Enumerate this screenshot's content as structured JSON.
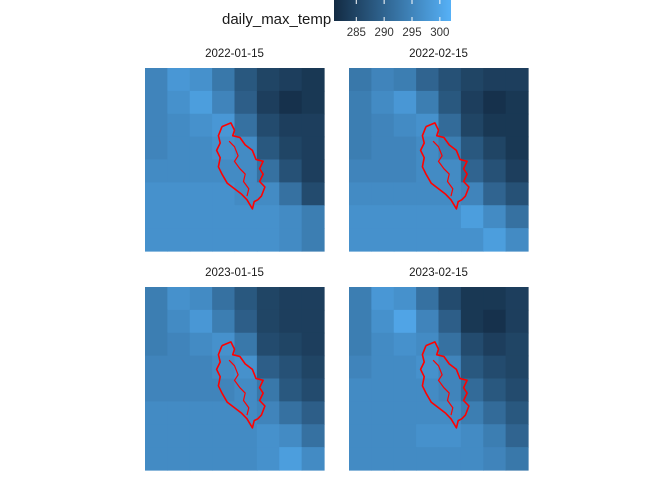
{
  "chart_data": {
    "type": "heatmap",
    "legend": {
      "title": "daily_max_temp",
      "ticks": [
        "285",
        "290",
        "295",
        "300"
      ],
      "tick_values": [
        285,
        290,
        295,
        300
      ],
      "range": [
        281,
        302
      ],
      "color_low": "#132B43",
      "color_high": "#56B1F7",
      "placement": "top"
    },
    "overlay_color": "#ff0000",
    "grid_size": [
      8,
      8
    ],
    "panels": [
      {
        "title": "2022-01-15",
        "values": [
          [
            295,
            298,
            297,
            293,
            288,
            285,
            284,
            283
          ],
          [
            295,
            297,
            299,
            295,
            289,
            284,
            282,
            283
          ],
          [
            295,
            296,
            297,
            298,
            292,
            286,
            284,
            284
          ],
          [
            295,
            296,
            296,
            297,
            296,
            288,
            285,
            284
          ],
          [
            296,
            296,
            296,
            296,
            296,
            292,
            287,
            284
          ],
          [
            297,
            297,
            297,
            297,
            296,
            296,
            292,
            286
          ],
          [
            297,
            297,
            297,
            297,
            297,
            297,
            296,
            294
          ],
          [
            297,
            297,
            297,
            297,
            297,
            297,
            296,
            294
          ]
        ]
      },
      {
        "title": "2022-02-15",
        "values": [
          [
            293,
            295,
            294,
            290,
            287,
            285,
            284,
            284
          ],
          [
            294,
            296,
            298,
            294,
            288,
            284,
            282,
            283
          ],
          [
            294,
            295,
            296,
            297,
            291,
            285,
            283,
            283
          ],
          [
            294,
            295,
            295,
            296,
            294,
            288,
            285,
            283
          ],
          [
            295,
            295,
            295,
            296,
            296,
            290,
            287,
            284
          ],
          [
            296,
            296,
            296,
            296,
            296,
            295,
            290,
            287
          ],
          [
            297,
            297,
            297,
            297,
            297,
            299,
            296,
            292
          ],
          [
            297,
            297,
            297,
            297,
            297,
            297,
            299,
            296
          ]
        ]
      },
      {
        "title": "2023-01-15",
        "values": [
          [
            294,
            297,
            296,
            292,
            288,
            285,
            284,
            284
          ],
          [
            294,
            296,
            298,
            294,
            289,
            285,
            284,
            284
          ],
          [
            294,
            295,
            296,
            297,
            293,
            286,
            285,
            284
          ],
          [
            295,
            295,
            295,
            296,
            297,
            289,
            287,
            285
          ],
          [
            295,
            295,
            295,
            295,
            296,
            293,
            288,
            286
          ],
          [
            296,
            296,
            296,
            296,
            296,
            295,
            292,
            289
          ],
          [
            296,
            296,
            296,
            296,
            296,
            297,
            296,
            292
          ],
          [
            296,
            296,
            296,
            296,
            296,
            297,
            299,
            296
          ]
        ]
      },
      {
        "title": "2023-02-15",
        "values": [
          [
            294,
            298,
            297,
            292,
            286,
            283,
            283,
            284
          ],
          [
            294,
            297,
            300,
            295,
            289,
            283,
            282,
            284
          ],
          [
            294,
            296,
            297,
            296,
            292,
            286,
            284,
            285
          ],
          [
            295,
            296,
            296,
            297,
            295,
            288,
            286,
            285
          ],
          [
            296,
            296,
            296,
            296,
            295,
            291,
            288,
            286
          ],
          [
            296,
            296,
            296,
            296,
            296,
            294,
            291,
            288
          ],
          [
            296,
            296,
            296,
            297,
            297,
            296,
            294,
            290
          ],
          [
            296,
            296,
            296,
            296,
            296,
            296,
            295,
            293
          ]
        ]
      }
    ]
  }
}
